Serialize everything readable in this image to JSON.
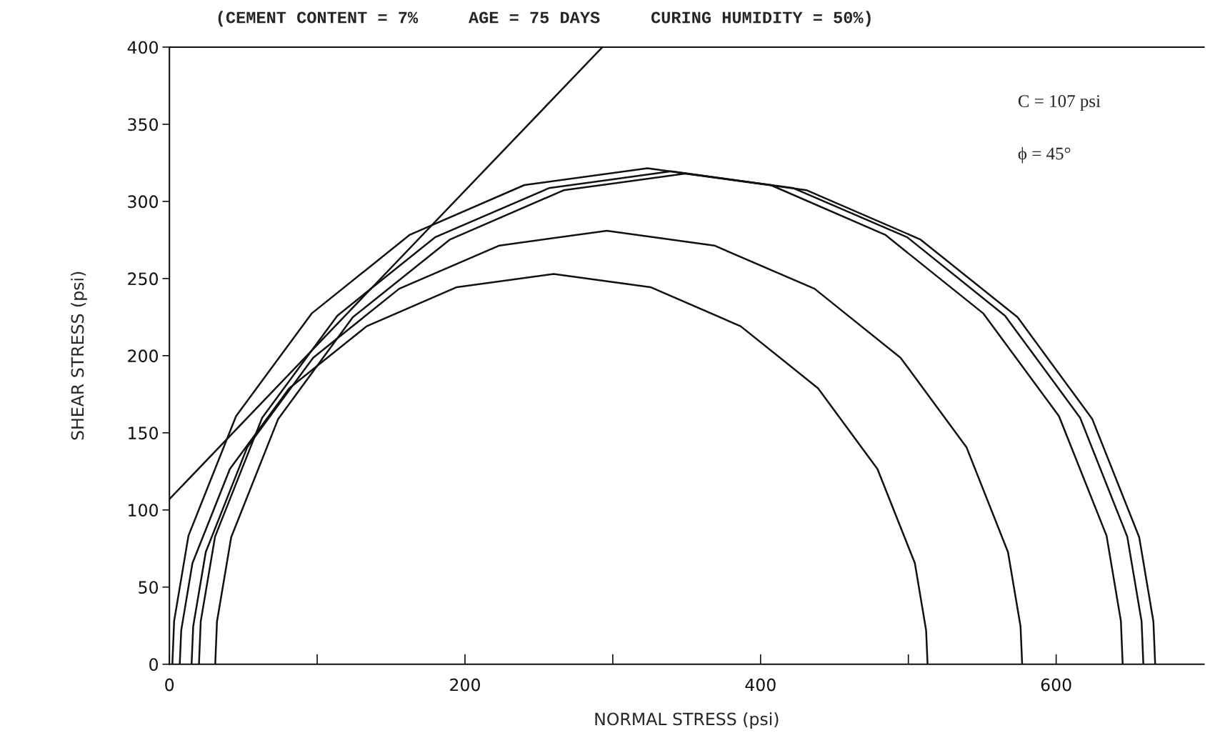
{
  "chart_data": {
    "type": "line",
    "title": "(CEMENT CONTENT = 7%     AGE = 75 DAYS     CURING HUMIDITY = 50%)",
    "xlabel": "NORMAL STRESS (psi)",
    "ylabel": "SHEAR STRESS (psi)",
    "series": [
      {
        "color": "#111111",
        "x": [
          7,
          8,
          15.6,
          40.9,
          81.1,
          133.5,
          194.5,
          260,
          325.5,
          386.5,
          438.9,
          479.1,
          504.4,
          512,
          513
        ],
        "values": [
          0,
          22,
          65.5,
          126.5,
          178.9,
          219.1,
          244.4,
          253,
          244.4,
          219.1,
          178.9,
          126.5,
          65.5,
          22,
          0
        ]
      },
      {
        "color": "#111111",
        "x": [
          15,
          16.1,
          24.6,
          52.6,
          97.3,
          155.5,
          223.3,
          296,
          368.7,
          436.5,
          494.7,
          539.4,
          567.4,
          575.9,
          577
        ],
        "values": [
          0,
          24.5,
          72.7,
          140.5,
          198.7,
          243.4,
          271.4,
          281,
          271.4,
          243.4,
          198.7,
          140.5,
          72.7,
          24.5,
          0
        ]
      },
      {
        "color": "#111111",
        "x": [
          2,
          3.2,
          12.9,
          45.1,
          96.2,
          162.7,
          240.2,
          323.5,
          406.8,
          484.3,
          550.8,
          601.9,
          634.1,
          643.8,
          645
        ],
        "values": [
          0,
          28,
          83.3,
          160.8,
          227.3,
          278.4,
          310.6,
          321.5,
          310.6,
          278.4,
          227.3,
          160.8,
          83.3,
          28,
          0
        ]
      },
      {
        "color": "#111111",
        "x": [
          20,
          21.2,
          30.9,
          62.8,
          113.6,
          179.7,
          256.8,
          339.5,
          422.2,
          499.3,
          565.4,
          616.2,
          648.1,
          657.8,
          659
        ],
        "values": [
          0,
          27.8,
          82.7,
          159.8,
          225.9,
          276.7,
          308.6,
          319.5,
          308.6,
          276.7,
          225.9,
          159.8,
          82.7,
          27.8,
          0
        ]
      },
      {
        "color": "#111111",
        "x": [
          31,
          32.2,
          41.8,
          73.6,
          124.1,
          190,
          266.7,
          349,
          431.3,
          508,
          573.9,
          624.4,
          656.2,
          665.8,
          667
        ],
        "values": [
          0,
          27.7,
          82.3,
          159,
          224.9,
          275.4,
          307.2,
          318,
          307.2,
          275.4,
          224.9,
          159,
          82.3,
          27.7,
          0
        ]
      },
      {
        "color": "#111111",
        "x": [
          0,
          293
        ],
        "values": [
          107,
          400
        ]
      }
    ],
    "annotations": [
      "C = 107 psi",
      "ϕ = 45°"
    ],
    "xlim": [
      0,
      700
    ],
    "ylim": [
      0,
      400
    ],
    "xticks": [
      0,
      {
        "value": 100,
        "label": null
      },
      200,
      {
        "value": 300,
        "label": null
      },
      400,
      {
        "value": 500,
        "label": null
      },
      600
    ],
    "yticks": [
      0,
      50,
      100,
      150,
      200,
      250,
      300,
      350,
      400
    ],
    "grid": false,
    "legend": false,
    "line_style": "solid",
    "marker": "none"
  }
}
